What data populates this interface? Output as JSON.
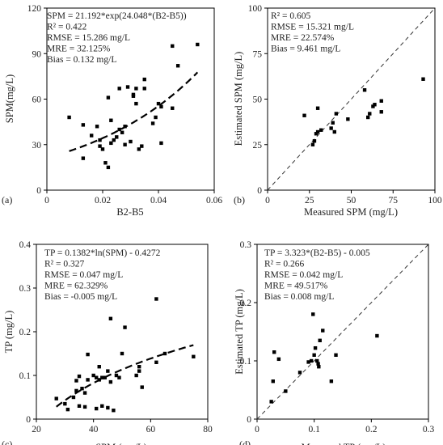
{
  "chart_data": [
    {
      "type": "scatter",
      "panel_label": "(a)",
      "xlabel": "B2-B5",
      "ylabel": "SPM(mg/L)",
      "xlim": [
        0,
        0.06
      ],
      "ylim": [
        0,
        120
      ],
      "xticks": [
        0,
        0.02,
        0.04,
        0.06
      ],
      "yticks": [
        0,
        30,
        60,
        90,
        120
      ],
      "xtick_labels": [
        "0",
        "0.02",
        "0.04",
        "0.06"
      ],
      "ytick_labels": [
        "0",
        "30",
        "60",
        "90",
        "120"
      ],
      "annotations": [
        "SPM = 21.192*exp(24.048*(B2-B5))",
        "R² = 0.422",
        "RMSE = 15.286 mg/L",
        "MRE = 32.125%",
        "Bias = 0.132 mg/L"
      ],
      "points": [
        [
          0.008,
          48
        ],
        [
          0.013,
          21
        ],
        [
          0.013,
          43
        ],
        [
          0.016,
          36
        ],
        [
          0.018,
          42
        ],
        [
          0.019,
          33
        ],
        [
          0.019,
          29
        ],
        [
          0.02,
          27
        ],
        [
          0.021,
          18
        ],
        [
          0.022,
          15
        ],
        [
          0.022,
          61
        ],
        [
          0.023,
          31
        ],
        [
          0.023,
          46
        ],
        [
          0.024,
          33
        ],
        [
          0.025,
          35
        ],
        [
          0.026,
          67
        ],
        [
          0.026,
          40
        ],
        [
          0.027,
          38
        ],
        [
          0.028,
          30
        ],
        [
          0.028,
          42
        ],
        [
          0.029,
          68
        ],
        [
          0.03,
          32
        ],
        [
          0.031,
          62
        ],
        [
          0.031,
          63
        ],
        [
          0.032,
          67
        ],
        [
          0.032,
          57
        ],
        [
          0.033,
          27
        ],
        [
          0.034,
          29
        ],
        [
          0.035,
          67
        ],
        [
          0.035,
          73
        ],
        [
          0.038,
          44
        ],
        [
          0.039,
          48
        ],
        [
          0.04,
          57
        ],
        [
          0.041,
          55
        ],
        [
          0.041,
          31
        ],
        [
          0.045,
          95
        ],
        [
          0.045,
          54
        ],
        [
          0.047,
          82
        ],
        [
          0.054,
          96
        ]
      ],
      "fit": {
        "kind": "exp",
        "a": 21.192,
        "b": 24.048,
        "x_range": [
          0.008,
          0.054
        ]
      },
      "grid": false
    },
    {
      "type": "scatter",
      "panel_label": "(b)",
      "xlabel": "Measured SPM (mg/L)",
      "ylabel": "Estimated  SPM (mg/L)",
      "xlim": [
        0,
        100
      ],
      "ylim": [
        0,
        100
      ],
      "xticks": [
        0,
        25,
        50,
        75,
        100
      ],
      "yticks": [
        0,
        25,
        50,
        75,
        100
      ],
      "xtick_labels": [
        "0",
        "25",
        "50",
        "75",
        "100"
      ],
      "ytick_labels": [
        "0",
        "25",
        "50",
        "75",
        "100"
      ],
      "annotations": [
        "R² = 0.605",
        "RMSE = 15.321 mg/L",
        "MRE = 22.574%",
        "Bias = 9.461 mg/L"
      ],
      "points": [
        [
          22,
          41
        ],
        [
          27,
          25
        ],
        [
          28,
          27
        ],
        [
          29,
          31
        ],
        [
          30,
          32
        ],
        [
          30,
          45
        ],
        [
          32,
          33
        ],
        [
          38,
          34
        ],
        [
          39,
          37
        ],
        [
          40,
          32
        ],
        [
          41,
          42
        ],
        [
          48,
          39
        ],
        [
          58,
          55
        ],
        [
          60,
          40
        ],
        [
          61,
          42
        ],
        [
          63,
          46
        ],
        [
          64,
          47
        ],
        [
          68,
          49
        ],
        [
          68,
          43
        ],
        [
          93,
          61
        ]
      ],
      "identity_line": true,
      "grid": false
    },
    {
      "type": "scatter",
      "panel_label": "(c)",
      "xlabel": "SPM (mg/L)",
      "ylabel": "TP (mg/L)",
      "xlim": [
        20,
        80
      ],
      "ylim": [
        0,
        0.4
      ],
      "xticks": [
        20,
        40,
        60,
        80
      ],
      "yticks": [
        0,
        0.1,
        0.2,
        0.3,
        0.4
      ],
      "xtick_labels": [
        "20",
        "40",
        "60",
        "80"
      ],
      "ytick_labels": [
        "0",
        "0.1",
        "0.2",
        "0.3",
        "0.4"
      ],
      "annotations": [
        "TP = 0.1382*ln(SPM)  - 0.4272",
        "R² = 0.327",
        "RMSE = 0.047 mg/L",
        "MRE = 62.329%",
        "Bias = -0.005 mg/L"
      ],
      "points": [
        [
          27,
          0.047
        ],
        [
          30,
          0.035
        ],
        [
          31,
          0.022
        ],
        [
          33,
          0.05
        ],
        [
          34,
          0.088
        ],
        [
          34,
          0.065
        ],
        [
          35,
          0.098
        ],
        [
          35,
          0.03
        ],
        [
          36,
          0.07
        ],
        [
          37,
          0.06
        ],
        [
          37,
          0.028
        ],
        [
          38,
          0.148
        ],
        [
          38,
          0.09
        ],
        [
          40,
          0.1
        ],
        [
          41,
          0.095
        ],
        [
          41,
          0.024
        ],
        [
          42,
          0.12
        ],
        [
          42,
          0.09
        ],
        [
          43,
          0.095
        ],
        [
          43,
          0.03
        ],
        [
          44,
          0.095
        ],
        [
          45,
          0.11
        ],
        [
          45,
          0.026
        ],
        [
          46,
          0.23
        ],
        [
          46,
          0.085
        ],
        [
          47,
          0.02
        ],
        [
          48,
          0.1
        ],
        [
          49,
          0.095
        ],
        [
          50,
          0.15
        ],
        [
          51,
          0.21
        ],
        [
          55,
          0.1
        ],
        [
          56,
          0.11
        ],
        [
          56,
          0.12
        ],
        [
          57,
          0.073
        ],
        [
          62,
          0.275
        ],
        [
          62,
          0.13
        ],
        [
          65,
          0.15
        ],
        [
          75,
          0.143
        ]
      ],
      "fit": {
        "kind": "log",
        "a": 0.1382,
        "b": -0.4272,
        "x_range": [
          27,
          75
        ]
      },
      "grid": false
    },
    {
      "type": "scatter",
      "panel_label": "(d)",
      "xlabel": "Measured  TP (mg/L)",
      "ylabel": "Estimated  TP (mg/L)",
      "xlim": [
        0,
        0.3
      ],
      "ylim": [
        0,
        0.3
      ],
      "xticks": [
        0,
        0.1,
        0.2,
        0.3
      ],
      "yticks": [
        0,
        0.1,
        0.2,
        0.3
      ],
      "xtick_labels": [
        "0",
        "0.1",
        "0.2",
        "0.3"
      ],
      "ytick_labels": [
        "0",
        "0.1",
        "0.2",
        "0.3"
      ],
      "annotations": [
        "TP = 3.323*(B2-B5) - 0.005",
        "R² = 0.266",
        "RMSE = 0.042 mg/L",
        "MRE = 49.517%",
        "Bias = 0.008 mg/L"
      ],
      "points": [
        [
          0.025,
          0.03
        ],
        [
          0.028,
          0.065
        ],
        [
          0.03,
          0.115
        ],
        [
          0.038,
          0.103
        ],
        [
          0.05,
          0.048
        ],
        [
          0.075,
          0.08
        ],
        [
          0.09,
          0.098
        ],
        [
          0.095,
          0.1
        ],
        [
          0.098,
          0.18
        ],
        [
          0.1,
          0.11
        ],
        [
          0.102,
          0.122
        ],
        [
          0.105,
          0.1
        ],
        [
          0.107,
          0.095
        ],
        [
          0.108,
          0.09
        ],
        [
          0.11,
          0.135
        ],
        [
          0.115,
          0.152
        ],
        [
          0.13,
          0.065
        ],
        [
          0.138,
          0.11
        ],
        [
          0.21,
          0.143
        ]
      ],
      "identity_line": true,
      "grid": false
    }
  ]
}
